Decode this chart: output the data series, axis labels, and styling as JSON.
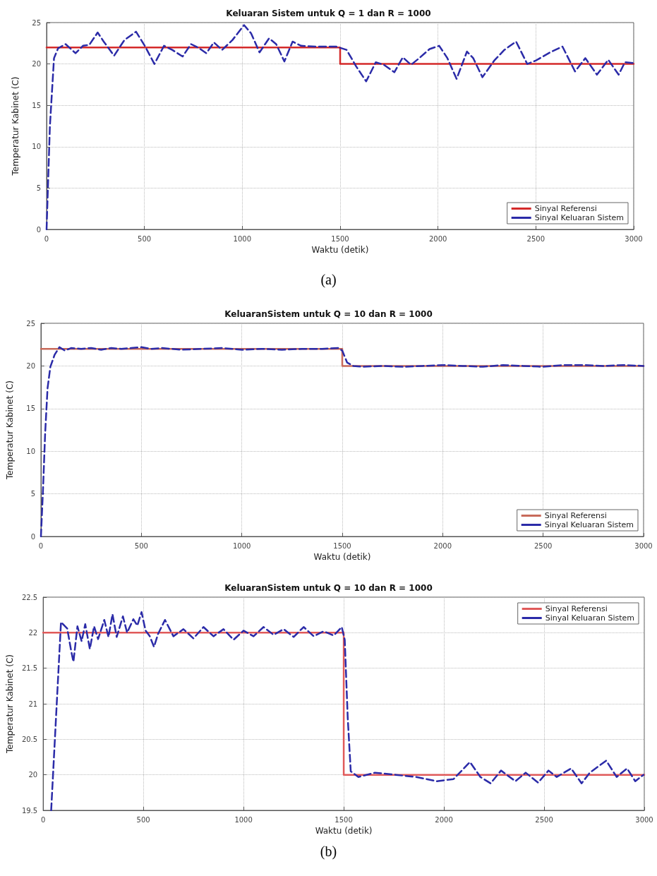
{
  "chart_data": [
    {
      "type": "line",
      "title": "Keluaran Sistem untuk Q = 1 dan R = 1000",
      "xlabel": "Waktu (detik)",
      "ylabel": "Temperatur Kabinet (C)",
      "annotations": [
        "(a)"
      ],
      "xlim": [
        0,
        3000
      ],
      "xticks": [
        0,
        500,
        1000,
        1500,
        2000,
        2500,
        3000
      ],
      "ylim": [
        0,
        25
      ],
      "yticks": [
        0,
        5,
        10,
        15,
        20,
        25
      ],
      "grid": true,
      "legend": "bottom right",
      "series": [
        {
          "name": "Sinyal Referensi",
          "color": "#d42a2a",
          "line_style": "solid",
          "x": [
            0,
            1500,
            1500,
            3000
          ],
          "values": [
            22,
            22,
            20,
            20
          ]
        },
        {
          "name": "Sinyal Keluaran Sistem",
          "color": "#2b2ba8",
          "line_style": "dashed",
          "x": [
            0,
            17,
            38,
            59,
            97,
            148,
            186,
            218,
            261,
            292,
            345,
            398,
            457,
            504,
            551,
            600,
            642,
            695,
            738,
            780,
            816,
            855,
            897,
            950,
            1009,
            1045,
            1088,
            1137,
            1173,
            1215,
            1257,
            1300,
            1374,
            1480,
            1533,
            1582,
            1633,
            1682,
            1724,
            1777,
            1820,
            1862,
            1904,
            1957,
            2006,
            2048,
            2095,
            2148,
            2180,
            2227,
            2287,
            2339,
            2399,
            2456,
            2499,
            2573,
            2636,
            2700,
            2753,
            2812,
            2870,
            2923,
            2955,
            2997
          ],
          "values": [
            0,
            12.5,
            20.7,
            21.9,
            22.4,
            21.3,
            22.2,
            22.3,
            23.8,
            22.7,
            21.0,
            22.9,
            23.9,
            22.1,
            20.0,
            22.2,
            21.7,
            20.9,
            22.4,
            21.9,
            21.3,
            22.6,
            21.7,
            22.9,
            24.7,
            23.7,
            21.4,
            23.1,
            22.4,
            20.3,
            22.7,
            22.2,
            22.1,
            22.1,
            21.7,
            19.7,
            17.9,
            20.2,
            19.9,
            19.0,
            20.8,
            19.9,
            20.7,
            21.8,
            22.2,
            20.7,
            18.2,
            21.5,
            20.7,
            18.4,
            20.4,
            21.7,
            22.7,
            20.0,
            20.4,
            21.4,
            22.1,
            19.1,
            20.7,
            18.7,
            20.5,
            18.7,
            20.2,
            20.1
          ]
        }
      ]
    },
    {
      "type": "line",
      "title": "KeluaranSistem untuk Q = 10 dan R = 1000",
      "xlabel": "Waktu (detik)",
      "ylabel": "Temperatur Kabinet (C)",
      "xlim": [
        0,
        3000
      ],
      "xticks": [
        0,
        500,
        1000,
        1500,
        2000,
        2500,
        3000
      ],
      "ylim": [
        0,
        25
      ],
      "yticks": [
        0,
        5,
        10,
        15,
        20,
        25
      ],
      "grid": true,
      "legend": "bottom right",
      "series": [
        {
          "name": "Sinyal Referensi",
          "color": "#c86a5a",
          "line_style": "solid",
          "x": [
            0,
            1500,
            1500,
            3000
          ],
          "values": [
            22,
            22,
            20,
            20
          ]
        },
        {
          "name": "Sinyal Keluaran Sistem",
          "color": "#2b2ba8",
          "line_style": "dashed",
          "x": [
            0,
            10,
            21,
            33,
            47,
            68,
            92,
            119,
            150,
            200,
            250,
            300,
            350,
            400,
            450,
            500,
            550,
            600,
            700,
            800,
            900,
            1000,
            1100,
            1200,
            1300,
            1400,
            1480,
            1500,
            1524,
            1555,
            1600,
            1700,
            1800,
            1900,
            2000,
            2100,
            2200,
            2300,
            2400,
            2500,
            2600,
            2700,
            2800,
            2900,
            3000
          ],
          "values": [
            0,
            5.3,
            12.1,
            17.4,
            19.9,
            21.3,
            22.2,
            21.8,
            22.1,
            22.0,
            22.1,
            21.9,
            22.1,
            22.0,
            22.1,
            22.2,
            22.0,
            22.1,
            21.9,
            22.0,
            22.1,
            21.9,
            22.0,
            21.9,
            22.0,
            22.0,
            22.1,
            21.8,
            20.4,
            20.0,
            19.9,
            20.0,
            19.9,
            20.0,
            20.1,
            20.0,
            19.9,
            20.1,
            20.0,
            19.9,
            20.1,
            20.1,
            20.0,
            20.1,
            20.0
          ]
        }
      ]
    },
    {
      "type": "line",
      "title": "KeluaranSistem untuk Q = 10 dan R = 1000",
      "xlabel": "Waktu (detik)",
      "ylabel": "Temperatur Kabinet (C)",
      "annotations": [
        "(b)"
      ],
      "xlim": [
        0,
        3000
      ],
      "xticks": [
        0,
        500,
        1000,
        1500,
        2000,
        2500,
        3000
      ],
      "ylim": [
        19.5,
        22.5
      ],
      "yticks": [
        19.5,
        20,
        20.5,
        21,
        21.5,
        22,
        22.5
      ],
      "grid": true,
      "legend": "top right",
      "series": [
        {
          "name": "Sinyal Referensi",
          "color": "#e05a5a",
          "line_style": "solid",
          "x": [
            0,
            1500,
            1500,
            3000
          ],
          "values": [
            22,
            22,
            20,
            20
          ]
        },
        {
          "name": "Sinyal Keluaran Sistem",
          "color": "#2b2ba8",
          "line_style": "dashed",
          "x": [
            40,
            89,
            120,
            140,
            151,
            171,
            192,
            210,
            233,
            254,
            274,
            305,
            326,
            346,
            367,
            398,
            419,
            450,
            470,
            491,
            511,
            532,
            553,
            573,
            608,
            650,
            700,
            750,
            800,
            850,
            900,
            950,
            1000,
            1050,
            1100,
            1150,
            1200,
            1250,
            1300,
            1350,
            1400,
            1450,
            1490,
            1505,
            1520,
            1535,
            1573,
            1656,
            1759,
            1862,
            1965,
            2048,
            2130,
            2182,
            2233,
            2285,
            2357,
            2408,
            2470,
            2522,
            2563,
            2635,
            2687,
            2728,
            2810,
            2862,
            2914,
            2955,
            2996
          ],
          "values": [
            19.5,
            22.15,
            22.06,
            21.74,
            21.59,
            22.09,
            21.88,
            22.12,
            21.77,
            22.09,
            21.91,
            22.18,
            21.94,
            22.26,
            21.94,
            22.23,
            22.0,
            22.19,
            22.1,
            22.29,
            22.03,
            21.95,
            21.8,
            21.98,
            22.18,
            21.95,
            22.05,
            21.92,
            22.08,
            21.95,
            22.05,
            21.9,
            22.03,
            21.95,
            22.08,
            21.97,
            22.05,
            21.94,
            22.08,
            21.95,
            22.02,
            21.96,
            22.08,
            21.9,
            20.8,
            20.05,
            19.97,
            20.03,
            20.0,
            19.97,
            19.91,
            19.94,
            20.18,
            19.97,
            19.88,
            20.06,
            19.91,
            20.03,
            19.89,
            20.06,
            19.97,
            20.09,
            19.88,
            20.03,
            20.2,
            19.97,
            20.09,
            19.91,
            20.0
          ]
        }
      ]
    }
  ]
}
